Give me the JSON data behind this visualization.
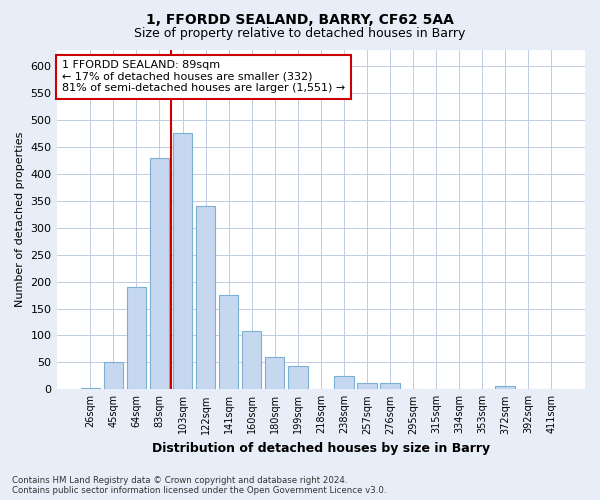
{
  "title1": "1, FFORDD SEALAND, BARRY, CF62 5AA",
  "title2": "Size of property relative to detached houses in Barry",
  "xlabel": "Distribution of detached houses by size in Barry",
  "ylabel": "Number of detached properties",
  "categories": [
    "26sqm",
    "45sqm",
    "64sqm",
    "83sqm",
    "103sqm",
    "122sqm",
    "141sqm",
    "160sqm",
    "180sqm",
    "199sqm",
    "218sqm",
    "238sqm",
    "257sqm",
    "276sqm",
    "295sqm",
    "315sqm",
    "334sqm",
    "353sqm",
    "372sqm",
    "392sqm",
    "411sqm"
  ],
  "values": [
    3,
    50,
    190,
    430,
    475,
    340,
    175,
    108,
    60,
    44,
    0,
    25,
    12,
    12,
    0,
    0,
    0,
    0,
    7,
    0,
    0
  ],
  "bar_color": "#c5d8f0",
  "bar_edge_color": "#7bafd4",
  "vline_color": "#cc0000",
  "vline_x": 3.5,
  "annotation_text": "1 FFORDD SEALAND: 89sqm\n← 17% of detached houses are smaller (332)\n81% of semi-detached houses are larger (1,551) →",
  "annotation_box_color": "#ffffff",
  "annotation_box_edge": "#cc0000",
  "ylim": [
    0,
    630
  ],
  "yticks": [
    0,
    50,
    100,
    150,
    200,
    250,
    300,
    350,
    400,
    450,
    500,
    550,
    600
  ],
  "footnote": "Contains HM Land Registry data © Crown copyright and database right 2024.\nContains public sector information licensed under the Open Government Licence v3.0.",
  "bg_color": "#e8eef8",
  "plot_bg_color": "#ffffff",
  "grid_color": "#c0cce0"
}
